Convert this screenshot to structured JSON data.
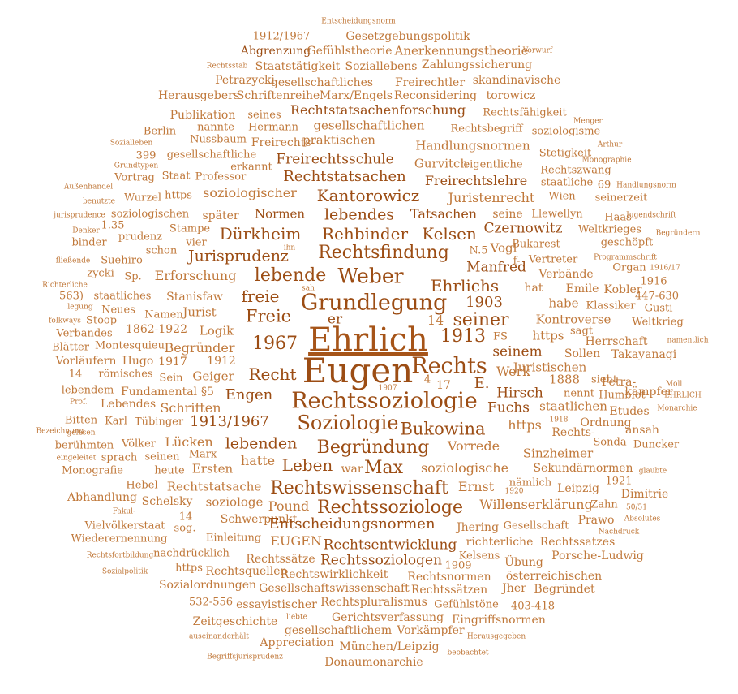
{
  "title": "",
  "colors": {
    "main": "#a65418",
    "dark": "#9c4d14",
    "medium": "#b5651d",
    "light": "#c0783a"
  },
  "words": [
    "Entscheidungsnorm",
    "1912/1967",
    "Gesetzgebungspolitik",
    "Abgrenzung",
    "Gefühlstheorie",
    "Anerkennungstheorie",
    "Rechtsstab",
    "Staatstätigkeit",
    "Soziallebens",
    "Zahlungssicherung",
    "Vorwurf",
    "Petrazycki",
    "gesellschaftliches",
    "Freirechtler",
    "skandinavische",
    "Herausgebers",
    "Schriftenreihe",
    "Marx/Engels",
    "Reconsidering",
    "torowicz",
    "Publikation",
    "seines",
    "Rechtstatsachenforschung",
    "Rechtsfähigkeit",
    "nannte",
    "Hermann",
    "gesellschaftlichen",
    "Menger",
    "Berlin",
    "Rechtsbegriff",
    "soziologisme",
    "Nussbaum",
    "praktischen",
    "Sozialleben",
    "Freirechts-",
    "Handlungsnormen",
    "Arthur",
    "399",
    "gesellschaftliche",
    "Stetigkeit",
    "Grundtypen",
    "Freirechtsschule",
    "Monographie",
    "erkannt",
    "Gurvitch",
    "eigentliche",
    "Vortrag",
    "Staat",
    "Professor",
    "Rechtstatsachen",
    "Rechtszwang",
    "Außenhandel",
    "Freirechtslehre",
    "staatliche",
    "69",
    "Handlungsnorm",
    "https",
    "soziologischer",
    "Kantorowicz",
    "Wien",
    "benutzte",
    "Wurzel",
    "Juristenrecht",
    "seinerzeit",
    "jurisprudence",
    "soziologischen",
    "später",
    "Normen",
    "lebendes",
    "Tatsachen",
    "seine",
    "Llewellyn",
    "Haas",
    "Jugendschrift",
    "1.35",
    "Denker",
    "Stampe",
    "Czernowitz",
    "Weltkrieges",
    "Dürkheim",
    "Rehbinder",
    "Kelsen",
    "binder",
    "prudenz",
    "vier",
    "Bukarest",
    "geschöpft",
    "Begründern",
    "schon",
    "ihn",
    "Jurisprudenz",
    "Rechtsfindung",
    "N.5",
    "Vogl",
    "fließende",
    "Suehiro",
    "Vertreter",
    "Programmschrift",
    "f-",
    "zycki",
    "Erforschung",
    "lebende",
    "Weber",
    "Manfred",
    "Verbände",
    "Organ",
    "1916/17",
    "Richterliche",
    "Sp.",
    "1916",
    "sah",
    "Ehrlichs",
    "freie",
    "hat",
    "Emile",
    "Kobler",
    "563)",
    "staatliches",
    "Stanisfaw",
    "447-630",
    "Grundlegung",
    "Klassiker",
    "1903",
    "legung",
    "Neues",
    "habe",
    "Gusti",
    "folkways",
    "Namen",
    "Jurist",
    "er",
    "seiner",
    "Kontroverse",
    "Stoop",
    "Freie",
    "Weltkrieg",
    "Verbandes",
    "1862-1922",
    "Logik",
    "14",
    "sagt",
    "FS",
    "Blätter",
    "Montesquieu",
    "namentlich",
    "1967",
    "Herrschaft",
    "https",
    "Ehrlich",
    "1913",
    "Vorläufern",
    "Hugo",
    "Begründer",
    "seinem",
    "Sollen",
    "Takayanagi",
    "1917",
    "1912",
    "Rechts",
    "Juristischen",
    "14",
    "römisches",
    "Sein",
    "Geiger",
    "Eugen",
    "Werk",
    "Recht",
    "1888",
    "Petra-",
    "sieht",
    "Moll",
    "4",
    "17",
    "E.",
    "1907",
    "lebendem",
    "Fundamental",
    "§5",
    "kämpfer",
    "Engen",
    "Hirsch",
    "nennt",
    "Humblot",
    "EHRLICH",
    "Prof.",
    "Lebendes",
    "Rechtssoziologie",
    "Monarchie",
    "Schriften",
    "Fuchs",
    "staatlichen",
    "Etudes",
    "Bitten",
    "Karl",
    "Tübinger",
    "1913/1967",
    "Soziologie",
    "https",
    "Ordnung",
    "1918",
    "Bezeichnung",
    "gelesen",
    "Rechts-",
    "Bukowina",
    "ansah",
    "berühmten",
    "Völker",
    "Lücken",
    "lebenden",
    "Vorrede",
    "Sonda",
    "Duncker",
    "eingeleitet",
    "Marx",
    "Begründung",
    "Sinzheimer",
    "sprach",
    "seinen",
    "hatte",
    "Leben",
    "soziologische",
    "Sekundärnormen",
    "Monografie",
    "heute",
    "Ersten",
    "Max",
    "war",
    "glaubte",
    "nämlich",
    "1921",
    "Hebel",
    "Rechtstatsache",
    "Rechtswissenschaft",
    "Ernst",
    "Leipzig",
    "Abhandlung",
    "Schelsky",
    "soziologe",
    "1920",
    "Dimitrie",
    "Fakul-",
    "Pound",
    "Rechtssoziologe",
    "Willenserklärung",
    "Zahn",
    "50/51",
    "Vielvölkerstaat",
    "14",
    "Schwerpunkt",
    "Gesellschaft",
    "Prawo",
    "sog.",
    "Entscheidungsnormen",
    "Absolutes",
    "Wiederernennung",
    "Jhering",
    "Nachdruck",
    "Einleitung",
    "EUGEN",
    "Rechtsentwicklung",
    "richterliche",
    "Rechtssatzes",
    "Rechtsfortbildung",
    "nachdrücklich",
    "Kelsens",
    "Porsche-Ludwig",
    "Rechtssätze",
    "Rechtssoziologen",
    "https",
    "Übung",
    "1909",
    "Rechtsquellen",
    "Sozialpolitik",
    "Rechtswirklichkeit",
    "Rechtsnormen",
    "österreichischen",
    "Sozialordnungen",
    "Gesellschaftswissenschaft",
    "Rechtssätzen",
    "Jher",
    "Begründet",
    "532-556",
    "essayistischer",
    "Rechtspluralismus",
    "Gefühlstöne",
    "403-418",
    "Gerichtsverfassung",
    "Zeitgeschichte",
    "liebte",
    "Eingriffsnormen",
    "gesellschaftlichem",
    "Vorkämpfer",
    "auseinanderhält",
    "Herausgegeben",
    "Appreciation",
    "München/Leipzig",
    "beobachtet",
    "Begriffsjurisprudenz",
    "Donaumonarchie"
  ]
}
